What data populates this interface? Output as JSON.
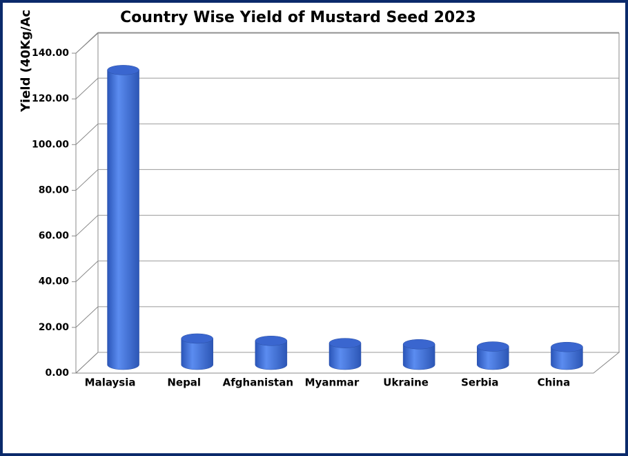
{
  "chart_data": {
    "type": "bar",
    "title": "Country Wise Yield of Mustard Seed 2023",
    "y_label": "Yield (40Kg/Ac",
    "categories": [
      "Malaysia",
      "Nepal",
      "Afghanistan",
      "Myanmar",
      "Ukraine",
      "Serbia",
      "China"
    ],
    "values": [
      129,
      11.5,
      10.5,
      9.5,
      9,
      8,
      7.8
    ],
    "color": "#3d6fd8",
    "ylim": [
      0,
      140
    ],
    "yticks": [
      {
        "value": 0,
        "label": "0.00"
      },
      {
        "value": 20,
        "label": "20.00"
      },
      {
        "value": 40,
        "label": "40.00"
      },
      {
        "value": 60,
        "label": "60.00"
      },
      {
        "value": 80,
        "label": "80.00"
      },
      {
        "value": 100,
        "label": "100.00"
      },
      {
        "value": 120,
        "label": "120.00"
      },
      {
        "value": 140,
        "label": "140.00"
      }
    ],
    "grid": true
  }
}
